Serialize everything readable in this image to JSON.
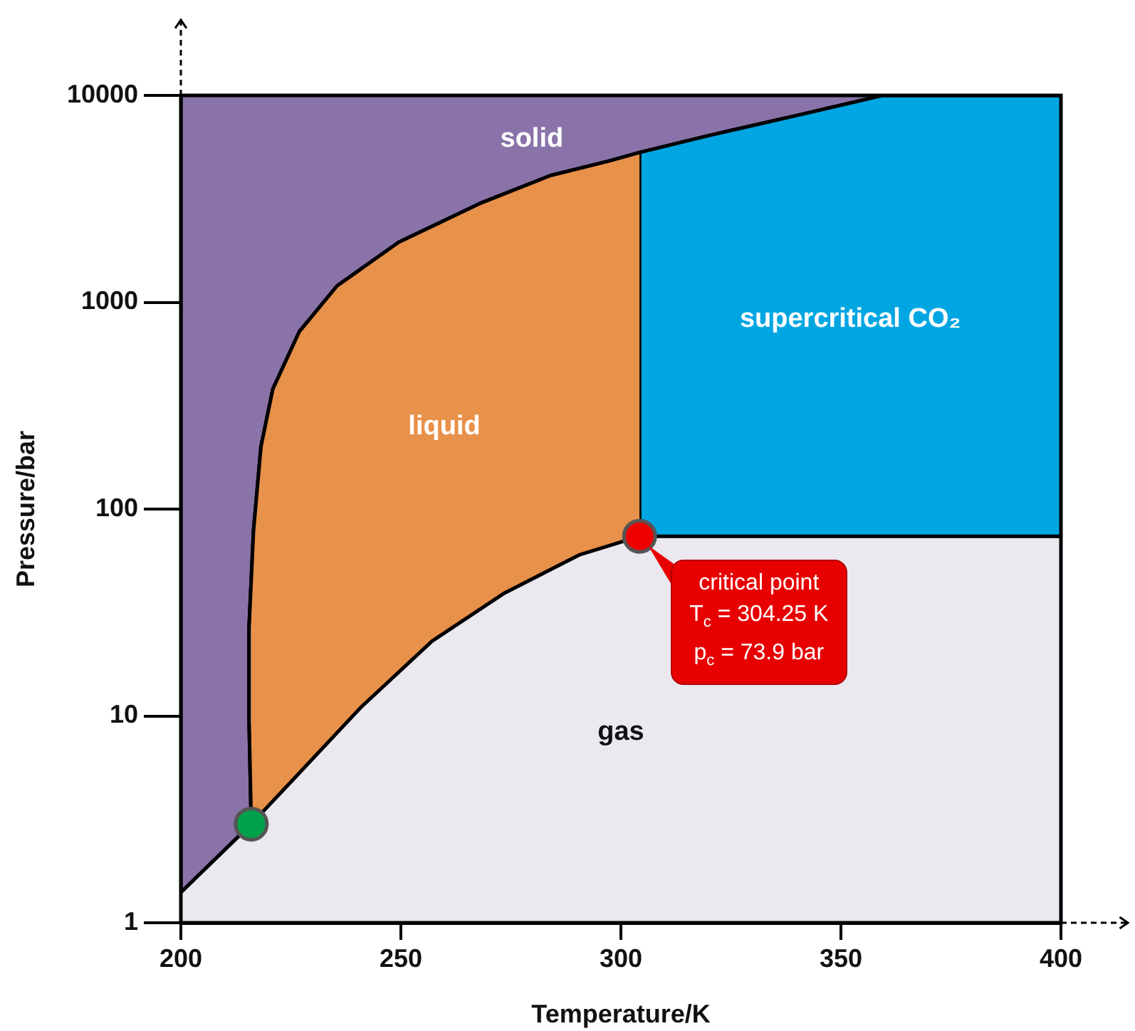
{
  "chart_data": {
    "type": "area",
    "xlabel": "Temperature/K",
    "ylabel": "Pressure/bar",
    "log": "y",
    "xlim": [
      200,
      400
    ],
    "xticks": [
      200,
      250,
      300,
      350,
      400
    ],
    "ylim": [
      1,
      10000
    ],
    "yticks": [
      1,
      10,
      100,
      1000,
      10000
    ],
    "series": [
      {
        "name": "gas",
        "color": "#ebe8f0",
        "x": [
          200,
          216,
          225.8,
          240.9,
          257.1,
          273.3,
          290.5,
          304.25,
          400
        ],
        "values": [
          1.4,
          3,
          5,
          11,
          23,
          39,
          60,
          73.9,
          73.9
        ]
      },
      {
        "name": "liquid",
        "color": "#e8914a",
        "x": [
          216,
          215.5,
          215.5,
          216.5,
          218.2,
          220.9,
          226.9,
          235.5,
          249.5,
          267.9,
          284,
          297,
          304.25
        ],
        "values": [
          3,
          9.4,
          27,
          78,
          200,
          380,
          720,
          1200,
          1950,
          3000,
          4100,
          4800,
          5300
        ]
      },
      {
        "name": "supercritical CO₂",
        "color": "#00a6e2",
        "x": [
          304.25,
          304.25,
          320,
          340,
          359.5,
          400
        ],
        "values": [
          73.9,
          5300,
          6400,
          8000,
          10000,
          10000
        ]
      },
      {
        "name": "solid",
        "color": "#8a73a9",
        "x": [
          200,
          200,
          216,
          215.5,
          215.5,
          216.5,
          218.2,
          220.9,
          226.9,
          235.5,
          249.5,
          267.9,
          284,
          297,
          304.25,
          320,
          340,
          359.5
        ],
        "values": [
          10000,
          1.4,
          3,
          9.4,
          27,
          78,
          200,
          380,
          720,
          1200,
          1950,
          3000,
          4100,
          4800,
          5300,
          6400,
          8000,
          10000
        ]
      },
      {
        "type": "scatter",
        "marker": "circle",
        "color": "#ee0000",
        "x": [
          304.25
        ],
        "values": [
          73.9
        ]
      },
      {
        "type": "scatter",
        "marker": "circle",
        "color": "#00a14b",
        "x": [
          216
        ],
        "values": [
          3
        ]
      }
    ],
    "annotations": [
      {
        "text": "critical point\nT$_{c}$ = 304.25 K\np$_{c}$ = 73.9 bar",
        "x": 304.25,
        "y": 73.9
      }
    ]
  }
}
